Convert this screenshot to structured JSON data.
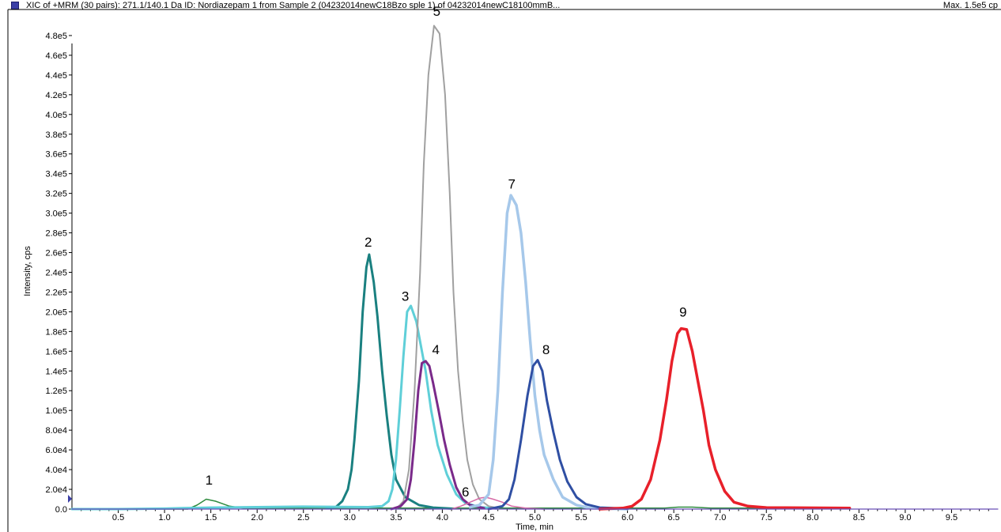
{
  "header": {
    "title": "XIC of +MRM (30 pairs): 271.1/140.1 Da ID: Nordiazepam 1 from Sample 2 (04232014newC18Bzo sple 1) of 04232014newC18100mmB...",
    "max": "Max. 1.5e5 cp",
    "swatch_color": "#3b3fa6"
  },
  "chart_data": {
    "type": "line",
    "xlabel": "Time, min",
    "ylabel": "Intensity, cps",
    "xlim": [
      0,
      10
    ],
    "ylim": [
      0,
      500000
    ],
    "x_ticks": [
      "0.5",
      "1.0",
      "1.5",
      "2.0",
      "2.5",
      "3.0",
      "3.5",
      "4.0",
      "4.5",
      "5.0",
      "5.5",
      "6.0",
      "6.5",
      "7.0",
      "7.5",
      "8.0",
      "8.5",
      "9.0",
      "9.5"
    ],
    "y_ticks": [
      "0.0",
      "2.0e4",
      "4.0e4",
      "6.0e4",
      "8.0e4",
      "1.0e5",
      "1.2e5",
      "1.4e5",
      "1.6e5",
      "1.8e5",
      "2.0e5",
      "2.2e5",
      "2.4e5",
      "2.6e5",
      "2.8e5",
      "3.0e5",
      "3.2e5",
      "3.4e5",
      "3.6e5",
      "3.8e5",
      "4.0e5",
      "4.2e5",
      "4.4e5",
      "4.6e5",
      "4.8e5"
    ],
    "peak_labels": [
      {
        "text": "1",
        "x": 1.48,
        "y": 25000
      },
      {
        "text": "2",
        "x": 3.2,
        "y": 266000
      },
      {
        "text": "3",
        "x": 3.6,
        "y": 211000
      },
      {
        "text": "4",
        "x": 3.93,
        "y": 157000
      },
      {
        "text": "5",
        "x": 3.94,
        "y": 500000
      },
      {
        "text": "6",
        "x": 4.25,
        "y": 13000
      },
      {
        "text": "7",
        "x": 4.75,
        "y": 325000
      },
      {
        "text": "8",
        "x": 5.12,
        "y": 157000
      },
      {
        "text": "9",
        "x": 6.6,
        "y": 195000
      }
    ],
    "series": [
      {
        "color": "#2e8b3e",
        "width": 1.5,
        "points": [
          [
            0,
            0
          ],
          [
            1.25,
            0
          ],
          [
            1.35,
            4000
          ],
          [
            1.45,
            10000
          ],
          [
            1.55,
            8000
          ],
          [
            1.7,
            3000
          ],
          [
            1.85,
            1000
          ],
          [
            2.0,
            1000
          ],
          [
            6.4,
            1000
          ],
          [
            6.55,
            2000
          ],
          [
            6.7,
            2000
          ],
          [
            6.9,
            1000
          ],
          [
            8.4,
            1000
          ]
        ]
      },
      {
        "color": "#1a8080",
        "width": 3,
        "points": [
          [
            2.75,
            1000
          ],
          [
            2.85,
            2000
          ],
          [
            2.92,
            8000
          ],
          [
            2.98,
            20000
          ],
          [
            3.02,
            40000
          ],
          [
            3.05,
            70000
          ],
          [
            3.1,
            130000
          ],
          [
            3.14,
            200000
          ],
          [
            3.18,
            245000
          ],
          [
            3.21,
            258000
          ],
          [
            3.26,
            230000
          ],
          [
            3.3,
            195000
          ],
          [
            3.35,
            140000
          ],
          [
            3.4,
            95000
          ],
          [
            3.45,
            55000
          ],
          [
            3.5,
            30000
          ],
          [
            3.6,
            12000
          ],
          [
            3.75,
            4000
          ],
          [
            3.9,
            1500
          ],
          [
            4.1,
            500
          ]
        ]
      },
      {
        "color": "#5fcfd8",
        "width": 3,
        "points": [
          [
            0,
            0
          ],
          [
            0.5,
            0
          ],
          [
            1.0,
            500
          ],
          [
            1.2,
            1000
          ],
          [
            1.5,
            1500
          ],
          [
            2.0,
            2000
          ],
          [
            2.5,
            2500
          ],
          [
            3.2,
            2000
          ],
          [
            3.35,
            3000
          ],
          [
            3.42,
            8000
          ],
          [
            3.46,
            20000
          ],
          [
            3.5,
            50000
          ],
          [
            3.54,
            100000
          ],
          [
            3.58,
            155000
          ],
          [
            3.62,
            200000
          ],
          [
            3.66,
            206000
          ],
          [
            3.72,
            190000
          ],
          [
            3.78,
            160000
          ],
          [
            3.82,
            140000
          ],
          [
            3.88,
            100000
          ],
          [
            3.95,
            65000
          ],
          [
            4.05,
            35000
          ],
          [
            4.15,
            15000
          ],
          [
            4.25,
            6000
          ],
          [
            4.4,
            2000
          ],
          [
            4.6,
            500
          ]
        ]
      },
      {
        "color": "#a0a0a0",
        "width": 2,
        "points": [
          [
            3.5,
            0
          ],
          [
            3.58,
            8000
          ],
          [
            3.64,
            40000
          ],
          [
            3.7,
            120000
          ],
          [
            3.76,
            240000
          ],
          [
            3.8,
            350000
          ],
          [
            3.85,
            440000
          ],
          [
            3.91,
            490000
          ],
          [
            3.97,
            482000
          ],
          [
            4.03,
            420000
          ],
          [
            4.08,
            320000
          ],
          [
            4.12,
            220000
          ],
          [
            4.17,
            140000
          ],
          [
            4.22,
            90000
          ],
          [
            4.27,
            50000
          ],
          [
            4.33,
            25000
          ],
          [
            4.4,
            10000
          ],
          [
            4.5,
            3000
          ],
          [
            4.6,
            1000
          ]
        ]
      },
      {
        "color": "#7a2a8a",
        "width": 3,
        "points": [
          [
            3.45,
            0
          ],
          [
            3.55,
            3000
          ],
          [
            3.62,
            10000
          ],
          [
            3.66,
            30000
          ],
          [
            3.7,
            70000
          ],
          [
            3.74,
            120000
          ],
          [
            3.78,
            148000
          ],
          [
            3.82,
            150000
          ],
          [
            3.86,
            145000
          ],
          [
            3.9,
            128000
          ],
          [
            3.96,
            100000
          ],
          [
            4.02,
            70000
          ],
          [
            4.08,
            45000
          ],
          [
            4.15,
            22000
          ],
          [
            4.22,
            10000
          ],
          [
            4.3,
            4000
          ],
          [
            4.45,
            1000
          ]
        ]
      },
      {
        "color": "#d66aa6",
        "width": 1.5,
        "points": [
          [
            4.1,
            0
          ],
          [
            4.2,
            3000
          ],
          [
            4.3,
            7000
          ],
          [
            4.4,
            11000
          ],
          [
            4.47,
            12000
          ],
          [
            4.55,
            10000
          ],
          [
            4.65,
            7000
          ],
          [
            4.75,
            3000
          ],
          [
            4.9,
            1000
          ],
          [
            5.1,
            0
          ]
        ]
      },
      {
        "color": "#a6c8ea",
        "width": 3.5,
        "points": [
          [
            4.3,
            2000
          ],
          [
            4.4,
            4000
          ],
          [
            4.5,
            15000
          ],
          [
            4.55,
            50000
          ],
          [
            4.6,
            120000
          ],
          [
            4.65,
            220000
          ],
          [
            4.7,
            300000
          ],
          [
            4.74,
            318000
          ],
          [
            4.8,
            308000
          ],
          [
            4.85,
            280000
          ],
          [
            4.9,
            230000
          ],
          [
            4.95,
            170000
          ],
          [
            5.0,
            115000
          ],
          [
            5.05,
            80000
          ],
          [
            5.1,
            55000
          ],
          [
            5.2,
            30000
          ],
          [
            5.3,
            12000
          ],
          [
            5.45,
            4000
          ],
          [
            5.6,
            1000
          ],
          [
            6.0,
            0
          ]
        ]
      },
      {
        "color": "#2f4fa3",
        "width": 3,
        "points": [
          [
            4.5,
            0
          ],
          [
            4.65,
            3000
          ],
          [
            4.72,
            10000
          ],
          [
            4.78,
            30000
          ],
          [
            4.85,
            70000
          ],
          [
            4.92,
            115000
          ],
          [
            4.98,
            145000
          ],
          [
            5.03,
            151000
          ],
          [
            5.08,
            140000
          ],
          [
            5.13,
            110000
          ],
          [
            5.2,
            78000
          ],
          [
            5.27,
            50000
          ],
          [
            5.35,
            28000
          ],
          [
            5.45,
            12000
          ],
          [
            5.55,
            5000
          ],
          [
            5.7,
            1500
          ],
          [
            6.0,
            500
          ]
        ]
      },
      {
        "color": "#e8202a",
        "width": 3.5,
        "points": [
          [
            5.7,
            0
          ],
          [
            5.95,
            1000
          ],
          [
            6.05,
            3000
          ],
          [
            6.15,
            10000
          ],
          [
            6.25,
            30000
          ],
          [
            6.35,
            70000
          ],
          [
            6.42,
            110000
          ],
          [
            6.48,
            150000
          ],
          [
            6.54,
            178000
          ],
          [
            6.58,
            183000
          ],
          [
            6.64,
            182000
          ],
          [
            6.7,
            160000
          ],
          [
            6.76,
            130000
          ],
          [
            6.82,
            100000
          ],
          [
            6.88,
            65000
          ],
          [
            6.95,
            40000
          ],
          [
            7.05,
            18000
          ],
          [
            7.15,
            7000
          ],
          [
            7.3,
            3000
          ],
          [
            7.5,
            1500
          ],
          [
            8.4,
            1000
          ]
        ]
      },
      {
        "color": "#6b4fb8",
        "width": 1.2,
        "points": [
          [
            0,
            0
          ],
          [
            10,
            0
          ]
        ]
      }
    ]
  }
}
